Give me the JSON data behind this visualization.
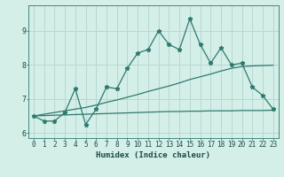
{
  "title": "",
  "xlabel": "Humidex (Indice chaleur)",
  "x": [
    0,
    1,
    2,
    3,
    4,
    5,
    6,
    7,
    8,
    9,
    10,
    11,
    12,
    13,
    14,
    15,
    16,
    17,
    18,
    19,
    20,
    21,
    22,
    23
  ],
  "y_main": [
    6.5,
    6.35,
    6.35,
    6.6,
    7.3,
    6.25,
    6.7,
    7.35,
    7.3,
    7.9,
    8.35,
    8.45,
    9.0,
    8.6,
    8.45,
    9.35,
    8.6,
    8.05,
    8.5,
    8.0,
    8.05,
    7.35,
    7.1,
    6.7
  ],
  "y_trend1": [
    6.5,
    6.55,
    6.6,
    6.65,
    6.7,
    6.75,
    6.82,
    6.9,
    6.97,
    7.05,
    7.13,
    7.22,
    7.3,
    7.38,
    7.47,
    7.57,
    7.65,
    7.73,
    7.82,
    7.9,
    7.95,
    7.97,
    7.98,
    7.99
  ],
  "y_trend2": [
    6.5,
    6.51,
    6.52,
    6.53,
    6.54,
    6.55,
    6.56,
    6.57,
    6.58,
    6.59,
    6.6,
    6.61,
    6.62,
    6.63,
    6.63,
    6.64,
    6.64,
    6.65,
    6.65,
    6.65,
    6.66,
    6.66,
    6.66,
    6.67
  ],
  "line_color": "#2d7a6f",
  "bg_color": "#d4eee8",
  "grid_color": "#b8d8d2",
  "ylim": [
    5.85,
    9.75
  ],
  "xlim": [
    -0.5,
    23.5
  ],
  "yticks": [
    6,
    7,
    8,
    9
  ],
  "xticks": [
    0,
    1,
    2,
    3,
    4,
    5,
    6,
    7,
    8,
    9,
    10,
    11,
    12,
    13,
    14,
    15,
    16,
    17,
    18,
    19,
    20,
    21,
    22,
    23
  ],
  "marker": "*",
  "marker_size": 3.5,
  "linewidth": 0.9,
  "tick_fontsize": 5.5,
  "label_fontsize": 6.5
}
